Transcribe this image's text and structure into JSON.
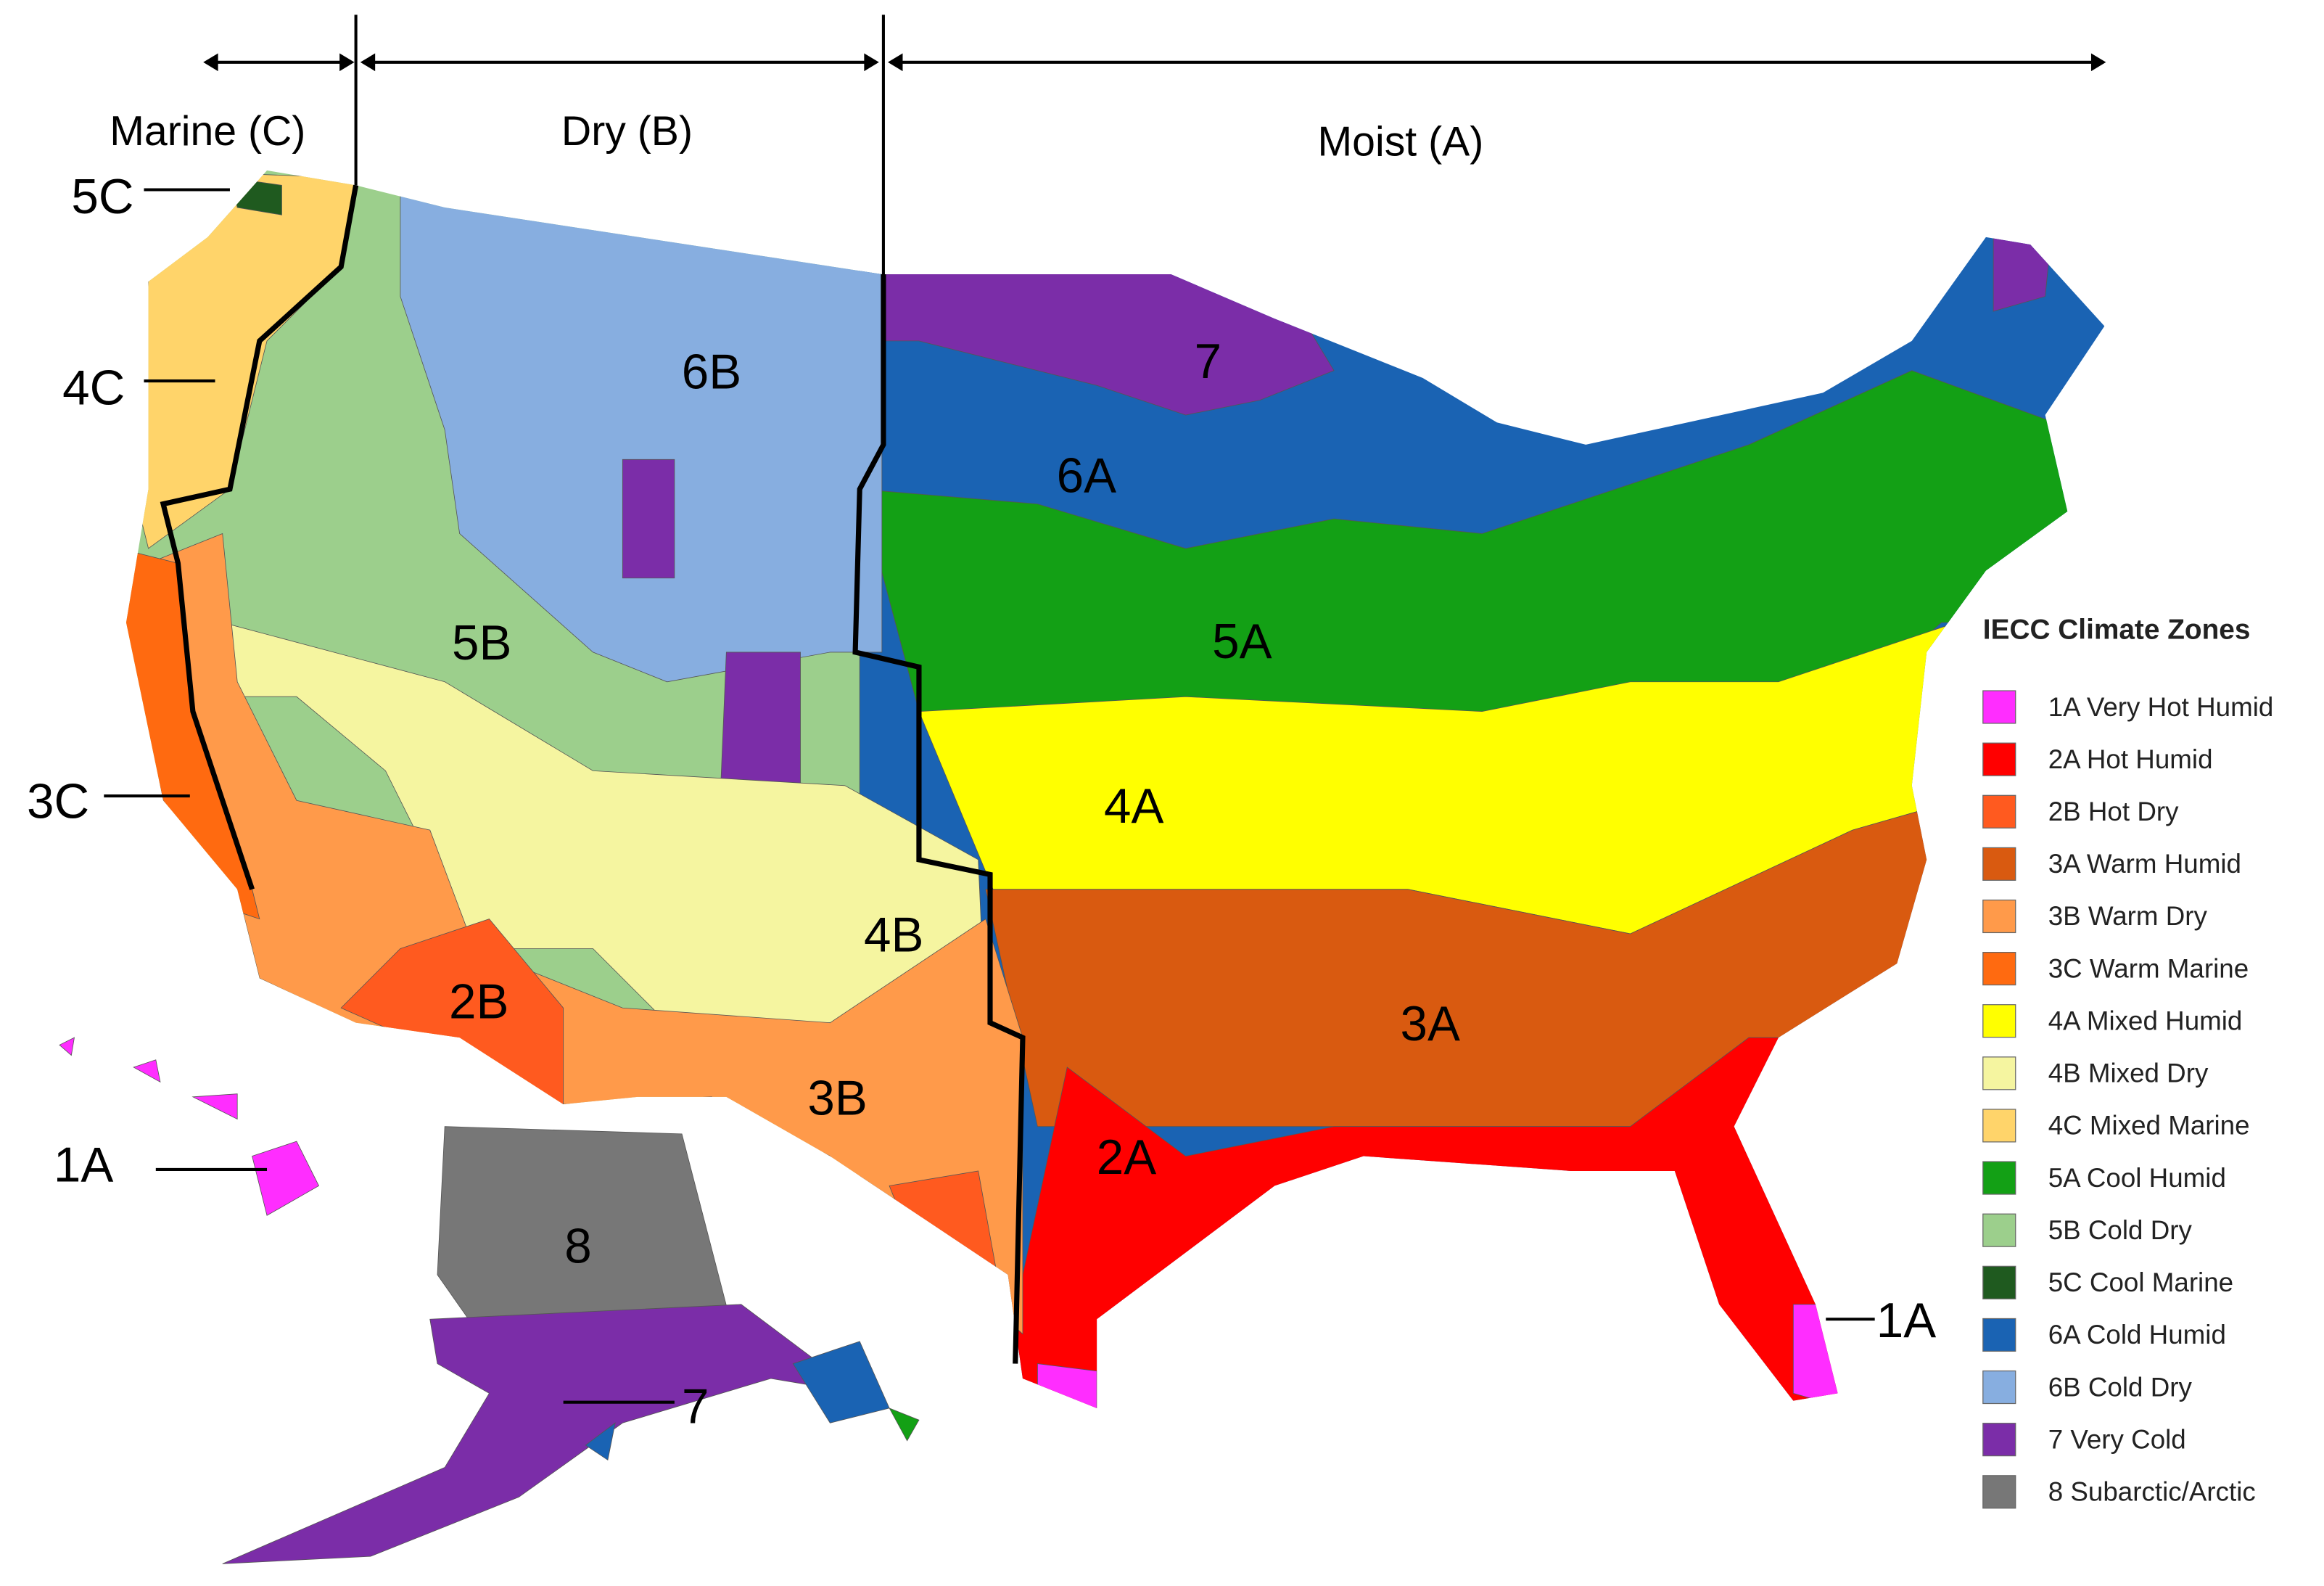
{
  "header": {
    "regions": [
      "Marine (C)",
      "Dry (B)",
      "Moist (A)"
    ]
  },
  "map": {
    "zone_labels": [
      "5C",
      "4C",
      "3C",
      "1A",
      "6B",
      "7",
      "6A",
      "5B",
      "5A",
      "4A",
      "4B",
      "2B",
      "3B",
      "3A",
      "2A",
      "8",
      "7",
      "1A"
    ]
  },
  "legend": {
    "title": "IECC Climate Zones",
    "items": [
      {
        "label": "1A Very Hot Humid",
        "color": "#ff2dff"
      },
      {
        "label": "2A Hot Humid",
        "color": "#ff0000"
      },
      {
        "label": "2B Hot Dry",
        "color": "#ff5a1f"
      },
      {
        "label": "3A Warm Humid",
        "color": "#d95a10"
      },
      {
        "label": "3B Warm Dry",
        "color": "#ff9a4a"
      },
      {
        "label": "3C Warm Marine",
        "color": "#ff6a10"
      },
      {
        "label": "4A Mixed Humid",
        "color": "#ffff00"
      },
      {
        "label": "4B Mixed Dry",
        "color": "#f5f5a0"
      },
      {
        "label": "4C Mixed Marine",
        "color": "#ffd46a"
      },
      {
        "label": "5A Cool Humid",
        "color": "#13a015"
      },
      {
        "label": "5B Cold Dry",
        "color": "#9ccf8c"
      },
      {
        "label": "5C Cool Marine",
        "color": "#1f5a1f"
      },
      {
        "label": "6A Cold Humid",
        "color": "#1a63b3"
      },
      {
        "label": "6B Cold Dry",
        "color": "#87aee0"
      },
      {
        "label": "7 Very Cold",
        "color": "#7b2da8"
      },
      {
        "label": "8 Subarctic/Arctic",
        "color": "#777777"
      }
    ]
  }
}
